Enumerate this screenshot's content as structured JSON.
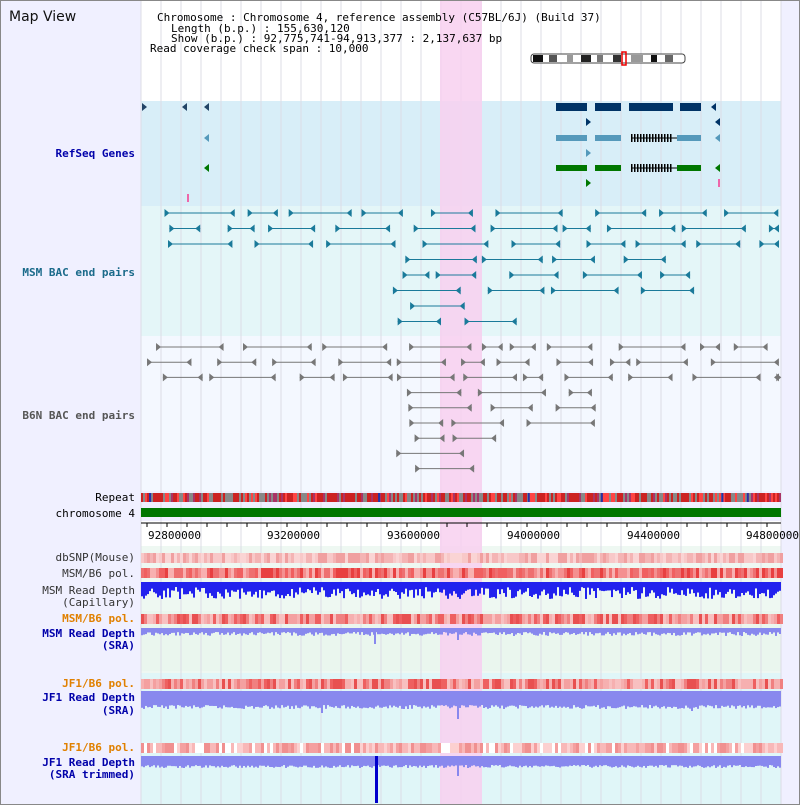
{
  "title": "Map View",
  "info": {
    "chromosome": "Chromosome    : Chromosome 4, reference assembly (C57BL/6J) (Build 37)",
    "length": "Length (b.p.) : 155,630,120",
    "show": "Show (b.p.) : 92,775,741-94,913,377 : 2,137,637 bp",
    "coverage": "Read coverage check span : 10,000"
  },
  "tracks": {
    "refseq": "RefSeq Genes",
    "msm_bac": "MSM BAC end pairs",
    "b6n_bac": "B6N BAC end pairs",
    "repeat": "Repeat",
    "chromosome": "chromosome 4",
    "dbsnp": "dbSNP(Mouse)",
    "msm_pol1": "MSM/B6 pol.",
    "msm_depth_cap": "MSM Read Depth",
    "msm_depth_cap_sub": "(Capillary)",
    "msm_pol2": "MSM/B6 pol.",
    "msm_depth_sra": "MSM Read Depth",
    "msm_depth_sra_sub": "(SRA)",
    "jf1_pol1": "JF1/B6 pol.",
    "jf1_depth_sra": "JF1 Read Depth",
    "jf1_depth_sra_sub": "(SRA)",
    "jf1_pol2": "JF1/B6 pol.",
    "jf1_depth_trim": "JF1 Read Depth",
    "jf1_depth_trim_sub": "(SRA trimmed)"
  },
  "axis": {
    "ticks": [
      "92800000",
      "93200000",
      "93600000",
      "94000000",
      "94400000",
      "94800000"
    ]
  },
  "colors": {
    "label_blue": "#0000aa",
    "label_orange": "#e08000",
    "label_dark": "#333333",
    "highlight": "#f8d0f0",
    "chromosome_bar": "#007700"
  }
}
